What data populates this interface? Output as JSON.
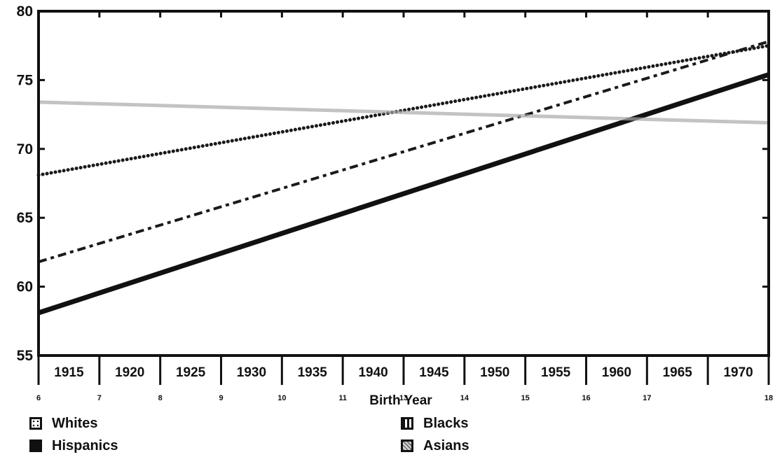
{
  "chart_data": {
    "type": "line",
    "xlabel": "Birth Year",
    "ylabel": "",
    "title": "",
    "ylim": [
      55,
      80
    ],
    "yticks": [
      55,
      60,
      65,
      70,
      75,
      80
    ],
    "x_categories": [
      "1915",
      "1920",
      "1925",
      "1930",
      "1935",
      "1940",
      "1945",
      "1950",
      "1955",
      "1960",
      "1965",
      "1970"
    ],
    "x_index_labels": [
      "6",
      "7",
      "8",
      "9",
      "10",
      "11",
      "13",
      "14",
      "15",
      "16",
      "17",
      "18"
    ],
    "grid": false,
    "legend_position": "bottom",
    "series": [
      {
        "name": "Whites",
        "style": "dotted",
        "color": "#1a1a1a",
        "values": [
          68.1,
          77.5
        ]
      },
      {
        "name": "Blacks",
        "style": "dashed",
        "color": "#1a1a1a",
        "values": [
          61.8,
          77.8
        ]
      },
      {
        "name": "Hispanics",
        "style": "solid",
        "color": "#111111",
        "values": [
          58.1,
          75.4
        ]
      },
      {
        "name": "Asians",
        "style": "light",
        "color": "#aaaaaa",
        "values": [
          73.4,
          71.9
        ]
      }
    ]
  }
}
